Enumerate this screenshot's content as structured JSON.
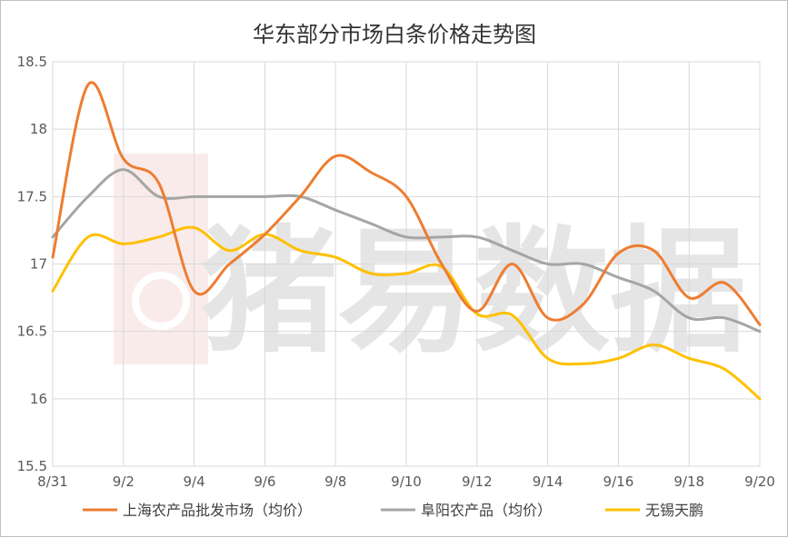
{
  "chart_data": {
    "type": "line",
    "title": "华东部分市场白条价格走势图",
    "xlabel": "",
    "ylabel": "",
    "x": [
      "8/31",
      "9/1",
      "9/2",
      "9/3",
      "9/4",
      "9/5",
      "9/6",
      "9/7",
      "9/8",
      "9/9",
      "9/10",
      "9/11",
      "9/12",
      "9/13",
      "9/14",
      "9/15",
      "9/16",
      "9/17",
      "9/18",
      "9/19",
      "9/20"
    ],
    "x_tick_labels": [
      "8/31",
      "9/2",
      "9/4",
      "9/6",
      "9/8",
      "9/10",
      "9/12",
      "9/14",
      "9/16",
      "9/18",
      "9/20"
    ],
    "ylim": [
      15.5,
      18.5
    ],
    "y_ticks": [
      15.5,
      16,
      16.5,
      17,
      17.5,
      18,
      18.5
    ],
    "grid": true,
    "legend_position": "bottom",
    "watermark": "猪易数据",
    "series": [
      {
        "name": "上海农产品批发市场（均价）",
        "color": "#ED7D31",
        "values": [
          17.05,
          18.33,
          17.78,
          17.6,
          16.8,
          17.0,
          17.22,
          17.5,
          17.8,
          17.68,
          17.5,
          17.0,
          16.65,
          17.0,
          16.6,
          16.7,
          17.08,
          17.1,
          16.75,
          16.86,
          16.55
        ]
      },
      {
        "name": "阜阳农产品（均价）",
        "color": "#A5A5A5",
        "values": [
          17.2,
          17.5,
          17.7,
          17.5,
          17.5,
          17.5,
          17.5,
          17.5,
          17.4,
          17.3,
          17.2,
          17.2,
          17.2,
          17.1,
          17.0,
          17.0,
          16.9,
          16.8,
          16.6,
          16.6,
          16.5
        ]
      },
      {
        "name": "无锡天鹏",
        "color": "#FFC000",
        "values": [
          16.8,
          17.2,
          17.15,
          17.2,
          17.27,
          17.1,
          17.22,
          17.1,
          17.05,
          16.93,
          16.93,
          16.98,
          16.63,
          16.62,
          16.3,
          16.26,
          16.3,
          16.4,
          16.3,
          16.22,
          16.0
        ]
      }
    ]
  }
}
